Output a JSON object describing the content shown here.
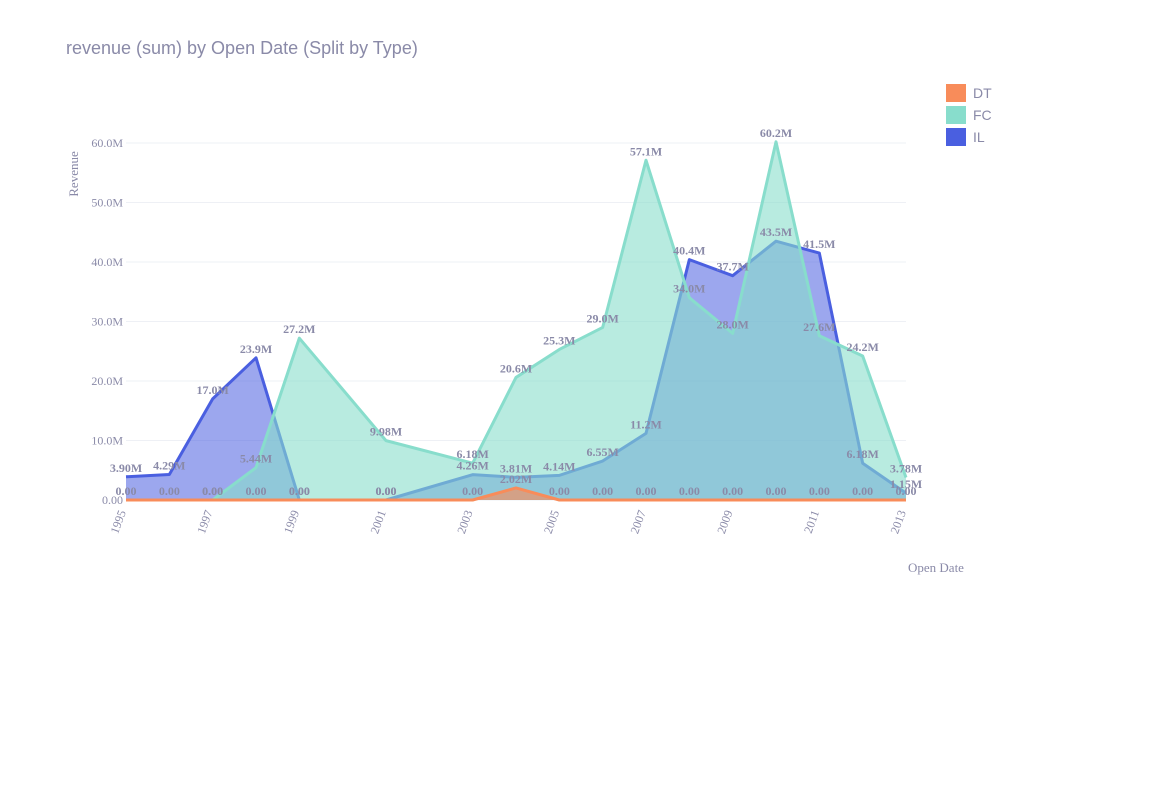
{
  "chart_data": {
    "type": "area",
    "title": "revenue (sum) by Open Date (Split by Type)",
    "xlabel": "Open Date",
    "ylabel": "Revenue",
    "ylim": [
      0,
      60000000
    ],
    "x_ticks": [
      "1995",
      "1997",
      "1999",
      "2001",
      "2003",
      "2005",
      "2007",
      "2009",
      "2011",
      "2013"
    ],
    "y_ticks": [
      "0.00",
      "10.0M",
      "20.0M",
      "30.0M",
      "40.0M",
      "50.0M",
      "60.0M"
    ],
    "legend_position": "top-right",
    "series": [
      {
        "name": "DT",
        "color": "#f88c5a",
        "x": [
          1995,
          1996,
          1997,
          1998,
          1999,
          2001,
          2003,
          2004,
          2005,
          2006,
          2007,
          2008,
          2009,
          2010,
          2011,
          2012,
          2013
        ],
        "values": [
          0,
          0,
          0,
          0,
          0,
          0,
          0,
          2020000,
          0,
          0,
          0,
          0,
          0,
          0,
          0,
          0,
          0
        ],
        "labels": [
          "0.00",
          "0.00",
          "0.00",
          "0.00",
          "0.00",
          "0.00",
          "0.00",
          "2.02M",
          "0.00",
          "0.00",
          "0.00",
          "0.00",
          "0.00",
          "0.00",
          "0.00",
          "0.00",
          "0.00"
        ]
      },
      {
        "name": "FC",
        "color": "#88ddcc",
        "x": [
          1997,
          1998,
          1999,
          2001,
          2003,
          2004,
          2005,
          2006,
          2007,
          2008,
          2009,
          2010,
          2011,
          2012,
          2013
        ],
        "values": [
          0,
          5440000,
          27200000,
          9980000,
          6180000,
          20600000,
          25300000,
          29000000,
          57100000,
          34000000,
          28000000,
          60200000,
          27600000,
          24200000,
          3780000
        ],
        "labels": [
          "0.00",
          "5.44M",
          "27.2M",
          "9.98M",
          "6.18M",
          "20.6M",
          "25.3M",
          "29.0M",
          "57.1M",
          "34.0M",
          "28.0M",
          "60.2M",
          "27.6M",
          "24.2M",
          "3.78M"
        ]
      },
      {
        "name": "IL",
        "color": "#4a5fe0",
        "x": [
          1995,
          1996,
          1997,
          1998,
          1999,
          2001,
          2003,
          2004,
          2005,
          2006,
          2007,
          2008,
          2009,
          2010,
          2011,
          2012,
          2013
        ],
        "values": [
          3900000,
          4290000,
          17000000,
          23900000,
          0,
          0,
          4260000,
          3810000,
          4140000,
          6550000,
          11200000,
          40400000,
          37700000,
          43500000,
          41500000,
          6180000,
          1150000
        ],
        "labels": [
          "3.90M",
          "4.29M",
          "17.0M",
          "23.9M",
          "0.00",
          "0.00",
          "4.26M",
          "3.81M",
          "4.14M",
          "6.55M",
          "11.2M",
          "40.4M",
          "37.7M",
          "43.5M",
          "41.5M",
          "6.18M",
          "1.15M"
        ]
      }
    ]
  }
}
